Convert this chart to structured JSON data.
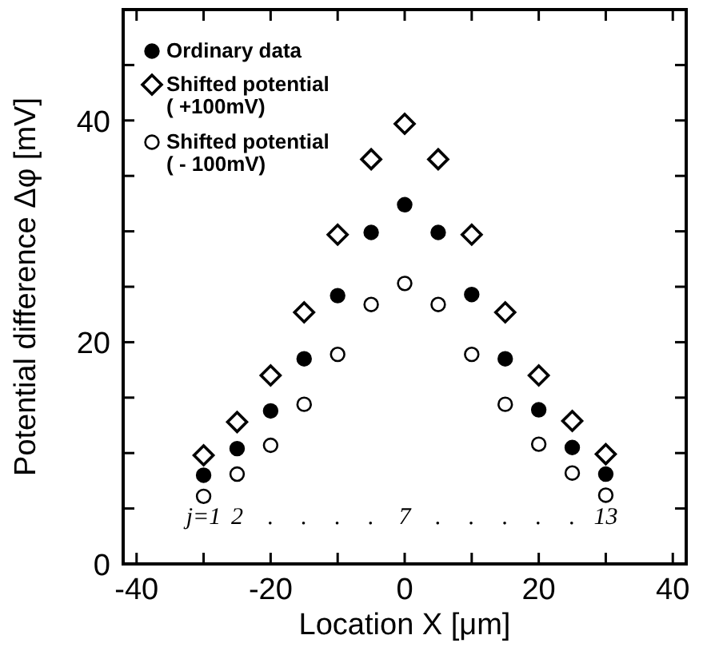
{
  "chart_data": {
    "type": "scatter",
    "xlabel": "Location X [μm]",
    "ylabel": "Potential difference Δφ [mV]",
    "x": [
      -30,
      -25,
      -20,
      -15,
      -10,
      -5,
      0,
      5,
      10,
      15,
      20,
      25,
      30
    ],
    "series": [
      {
        "name": "Ordinary data",
        "color": "#000000",
        "marker": "circle",
        "values": [
          8.0,
          10.4,
          13.8,
          18.5,
          24.2,
          29.9,
          32.4,
          29.9,
          24.3,
          18.5,
          13.9,
          10.5,
          8.1
        ]
      },
      {
        "name": "Shifted potential\n( +100mV)",
        "color": "#ffffff",
        "marker": "diamond",
        "values": [
          9.8,
          12.8,
          17.0,
          22.7,
          29.7,
          36.5,
          39.7,
          36.5,
          29.7,
          22.7,
          17.0,
          12.9,
          9.9
        ]
      },
      {
        "name": "Shifted potential\n( - 100mV)",
        "color": "#ffffff",
        "marker": "circle",
        "values": [
          6.1,
          8.1,
          10.7,
          14.4,
          18.9,
          23.4,
          25.3,
          23.4,
          18.9,
          14.4,
          10.8,
          8.2,
          6.2
        ]
      }
    ],
    "xlim": [
      -42,
      42
    ],
    "ylim": [
      0,
      50
    ],
    "xticks": [
      -40,
      {
        "value": -30,
        "label": null
      },
      -20,
      {
        "value": -10,
        "label": null
      },
      0,
      {
        "value": 10,
        "label": null
      },
      20,
      {
        "value": 30,
        "label": null
      },
      40
    ],
    "yticks": [
      0,
      {
        "value": 5,
        "label": null
      },
      {
        "value": 10,
        "label": null
      },
      {
        "value": 15,
        "label": null
      },
      20,
      {
        "value": 25,
        "label": null
      },
      {
        "value": 30,
        "label": null
      },
      {
        "value": 35,
        "label": null
      },
      40,
      {
        "value": 45,
        "label": null
      }
    ],
    "legend": "top left",
    "grid": false,
    "annotations": [
      "j=1",
      "2",
      ".",
      ".",
      ".",
      ".",
      "7",
      ".",
      ".",
      ".",
      ".",
      ".",
      "13"
    ]
  }
}
